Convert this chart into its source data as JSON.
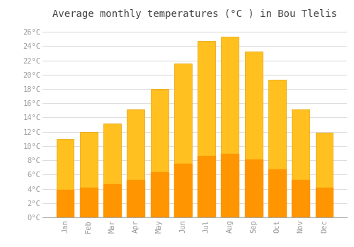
{
  "title": "Average monthly temperatures (°C ) in Bou Tlelis",
  "months": [
    "Jan",
    "Feb",
    "Mar",
    "Apr",
    "May",
    "Jun",
    "Jul",
    "Aug",
    "Sep",
    "Oct",
    "Nov",
    "Dec"
  ],
  "values": [
    11.0,
    12.0,
    13.2,
    15.1,
    18.0,
    21.6,
    24.7,
    25.3,
    23.2,
    19.3,
    15.1,
    11.9
  ],
  "bar_color_top": "#FFC020",
  "bar_color_bottom": "#FF9500",
  "bar_edge_color": "#E8A000",
  "background_color": "#FFFFFF",
  "grid_color": "#DDDDDD",
  "title_fontsize": 10,
  "tick_label_color": "#999999",
  "ytick_labels": [
    "0°C",
    "2°C",
    "4°C",
    "6°C",
    "8°C",
    "10°C",
    "12°C",
    "14°C",
    "16°C",
    "18°C",
    "20°C",
    "22°C",
    "24°C",
    "26°C"
  ],
  "ytick_values": [
    0,
    2,
    4,
    6,
    8,
    10,
    12,
    14,
    16,
    18,
    20,
    22,
    24,
    26
  ],
  "ylim": [
    0,
    27
  ],
  "font_family": "monospace"
}
